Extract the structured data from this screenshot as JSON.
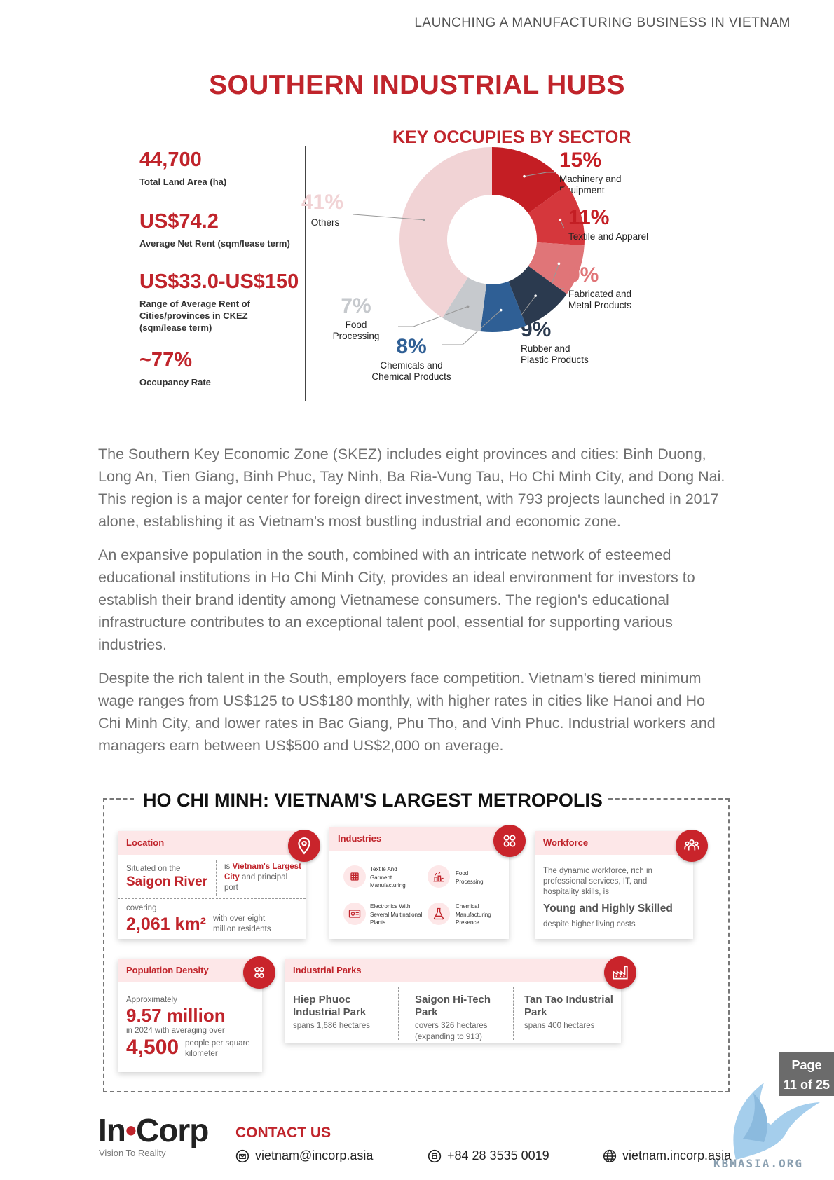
{
  "header": {
    "running_title": "LAUNCHING A MANUFACTURING BUSINESS IN VIETNAM"
  },
  "page_title": "SOUTHERN INDUSTRIAL HUBS",
  "stats": [
    {
      "value": "44,700",
      "label": "Total Land Area (ha)"
    },
    {
      "value": "US$74.2",
      "label": "Average Net Rent (sqm/lease term)"
    },
    {
      "value": "US$33.0-US$150",
      "label": "Range of Average Rent of Cities/provinces in CKEZ (sqm/lease term)"
    },
    {
      "value": "~77%",
      "label": "Occupancy Rate"
    }
  ],
  "chart_data": {
    "type": "pie",
    "title": "KEY OCCUPIES BY SECTOR",
    "donut": true,
    "slices": [
      {
        "label": "Machinery and Equipment",
        "value": 15,
        "display": "15%",
        "color": "#c41e24"
      },
      {
        "label": "Textile and Apparel",
        "value": 11,
        "display": "11%",
        "color": "#d5373c"
      },
      {
        "label": "Fabricated and Metal Products",
        "value": 9,
        "display": "9%",
        "color": "#e07578"
      },
      {
        "label": "Rubber and Plastic Products",
        "value": 9,
        "display": "9%",
        "color": "#2b3a4f"
      },
      {
        "label": "Chemicals and Chemical Products",
        "value": 8,
        "display": "8%",
        "color": "#2f5f95"
      },
      {
        "label": "Food Processing",
        "value": 7,
        "display": "7%",
        "color": "#c6c9cd"
      },
      {
        "label": "Others",
        "value": 41,
        "display": "41%",
        "color": "#f1d3d5"
      }
    ]
  },
  "paragraphs": [
    "The Southern Key Economic Zone (SKEZ) includes eight provinces and cities: Binh Duong, Long An, Tien Giang, Binh Phuc, Tay Ninh, Ba Ria-Vung Tau, Ho Chi Minh City, and Dong Nai. This region is a major center for foreign direct investment, with 793 projects launched in 2017 alone, establishing it as Vietnam's most bustling industrial and economic zone.",
    "An expansive population in the south, combined with an intricate network of esteemed educational institutions in Ho Chi Minh City, provides an ideal environment for investors to establish their brand identity among Vietnamese consumers. The region's educational infrastructure contributes to an exceptional talent pool, essential for supporting various industries.",
    "Despite the rich talent in the South, employers face competition. Vietnam's tiered minimum wage ranges from US$125 to US$180 monthly, with higher rates in cities like Hanoi and Ho Chi Minh City, and lower rates in Bac Giang, Phu Tho, and Vinh Phuc. Industrial workers and managers earn between US$500 and US$2,000 on average."
  ],
  "hcm": {
    "title": "HO CHI MINH: VIETNAM'S LARGEST METROPOLIS",
    "location": {
      "head": "Location",
      "situated": "Situated on the",
      "river": "Saigon River",
      "is": "is",
      "largest": "Vietnam's Largest City",
      "and": "and",
      "port": "principal port",
      "covering": "covering",
      "area": "2,061 km²",
      "residents": "with over eight million residents"
    },
    "industries": {
      "head": "Industries",
      "items": [
        "Textile And Garment Manufacturing",
        "Food Processing",
        "Electronics With Several Multinational Plants",
        "Chemical Manufacturing Presence"
      ]
    },
    "workforce": {
      "head": "Workforce",
      "text": "The dynamic workforce, rich in professional services, IT, and hospitality skills, is",
      "highlight": "Young and Highly Skilled",
      "note": "despite higher living costs"
    },
    "population": {
      "head": "Population Density",
      "approx": "Approximately",
      "value": "9.57 million",
      "year": "in 2024 with averaging over",
      "density": "4,500",
      "unit": "people per square kilometer"
    },
    "parks": {
      "head": "Industrial Parks",
      "items": [
        {
          "name": "Hiep Phuoc Industrial Park",
          "desc": "spans 1,686 hectares"
        },
        {
          "name": "Saigon Hi-Tech Park",
          "desc": "covers 326 hectares (expanding to 913)"
        },
        {
          "name": "Tan Tao Industrial Park",
          "desc": "spans 400 hectares"
        }
      ]
    }
  },
  "page_badge": {
    "label": "Page",
    "number": "11 of 25"
  },
  "footer": {
    "logo_left": "In",
    "logo_right": "Corp",
    "tagline": "Vision To Reality",
    "contact_title": "CONTACT US",
    "email": "vietnam@incorp.asia",
    "phone": "+84 28 3535 0019",
    "website": "vietnam.incorp.asia"
  },
  "watermark_text": "KBMASIA.ORG",
  "colors": {
    "brand_red": "#c0242b",
    "light_pink": "#fde7e8"
  }
}
